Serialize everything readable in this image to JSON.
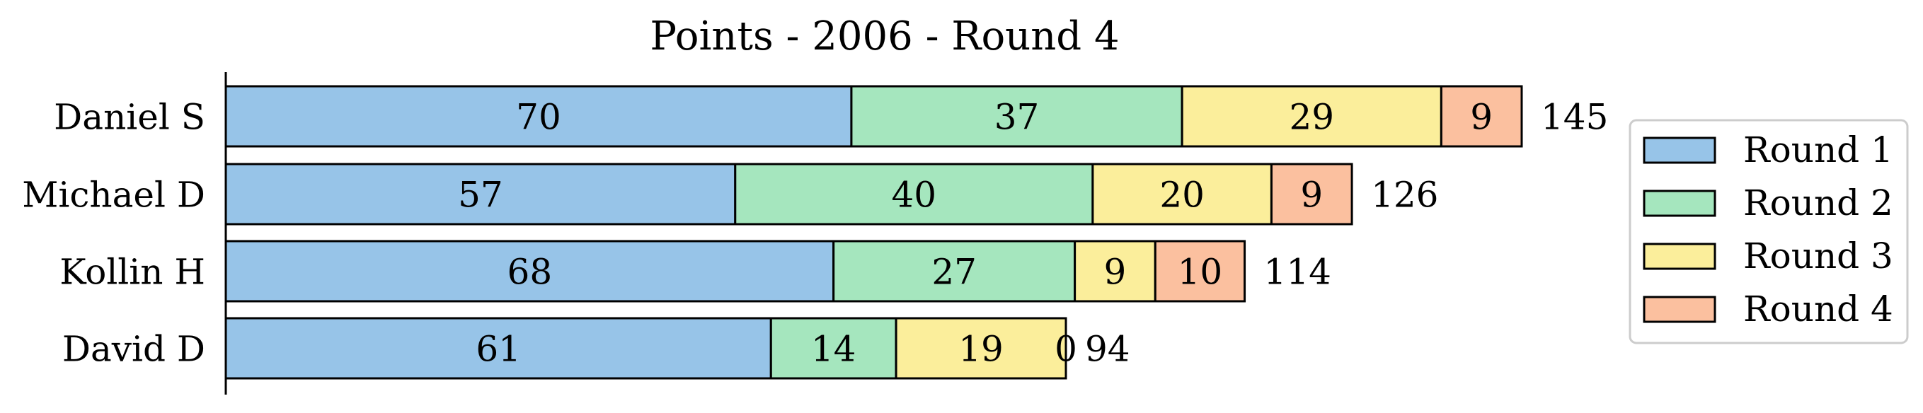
{
  "chart_data": {
    "type": "bar",
    "orientation": "horizontal",
    "stacked": true,
    "title": "Points - 2006 - Round 4",
    "xlabel": "",
    "ylabel": "",
    "categories": [
      "Daniel S",
      "Michael D",
      "Kollin H",
      "David D"
    ],
    "series": [
      {
        "name": "Round 1",
        "color": "#97c4e8",
        "values": [
          70,
          57,
          68,
          61
        ]
      },
      {
        "name": "Round 2",
        "color": "#a5e6be",
        "values": [
          37,
          40,
          27,
          14
        ]
      },
      {
        "name": "Round 3",
        "color": "#fbee9b",
        "values": [
          29,
          20,
          9,
          19
        ]
      },
      {
        "name": "Round 4",
        "color": "#fbc09f",
        "values": [
          9,
          9,
          10,
          0
        ]
      }
    ],
    "totals": [
      145,
      126,
      114,
      94
    ],
    "xlim": [
      0,
      145
    ],
    "grid": false,
    "legend_position": "right"
  }
}
